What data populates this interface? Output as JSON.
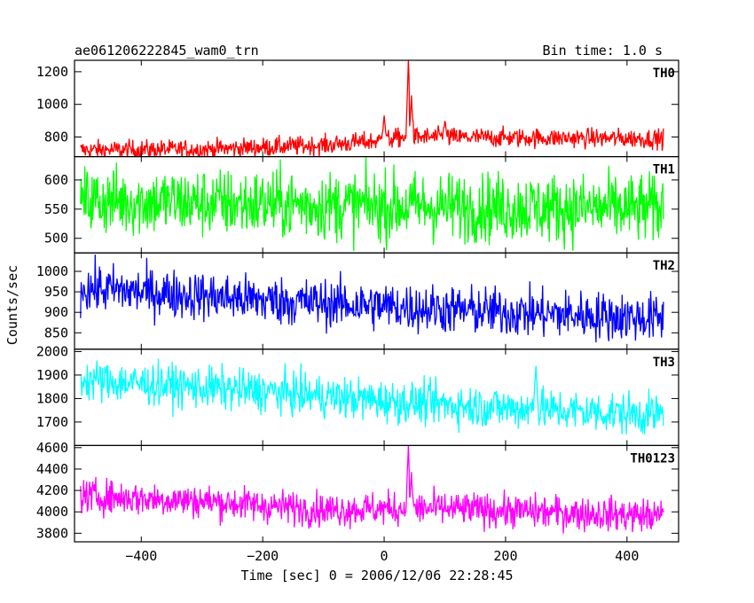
{
  "header": {
    "title": "ae061206222845_wam0_trn",
    "bin_time": "Bin time: 1.0 s"
  },
  "chart_data": {
    "type": "line",
    "xlabel": "Time [sec] 0 = 2006/12/06 22:28:45",
    "ylabel": "Counts/sec",
    "xlim": [
      -510,
      485
    ],
    "x_ticks": [
      -400,
      -200,
      0,
      200,
      400
    ],
    "x_tick_labels": [
      "−400",
      "−200",
      "0",
      "200",
      "400"
    ],
    "x_range": [
      -500,
      460
    ],
    "panels": [
      {
        "label": "TH0",
        "color": "#ff0000",
        "ylim": [
          680,
          1270
        ],
        "yticks": [
          800,
          1000,
          1200
        ],
        "ytick_labels": [
          "800",
          "1000",
          "1200"
        ],
        "trend": [
          [
            -500,
            720
          ],
          [
            -300,
            725
          ],
          [
            -100,
            750
          ],
          [
            0,
            780
          ],
          [
            30,
            800
          ],
          [
            460,
            790
          ]
        ],
        "noise": 30,
        "spikes": [
          [
            0,
            940
          ],
          [
            40,
            1270
          ],
          [
            45,
            1050
          ],
          [
            100,
            900
          ]
        ]
      },
      {
        "label": "TH1",
        "color": "#00ff00",
        "ylim": [
          475,
          640
        ],
        "yticks": [
          500,
          550,
          600
        ],
        "ytick_labels": [
          "500",
          "550",
          "600"
        ],
        "trend": [
          [
            -500,
            565
          ],
          [
            0,
            555
          ],
          [
            460,
            550
          ]
        ],
        "noise": 30,
        "spikes": []
      },
      {
        "label": "TH2",
        "color": "#0000ff",
        "ylim": [
          810,
          1045
        ],
        "yticks": [
          850,
          900,
          950,
          1000
        ],
        "ytick_labels": [
          "850",
          "900",
          "950",
          "1000"
        ],
        "trend": [
          [
            -500,
            960
          ],
          [
            -200,
            930
          ],
          [
            0,
            915
          ],
          [
            200,
            900
          ],
          [
            460,
            885
          ]
        ],
        "noise": 30,
        "spikes": []
      },
      {
        "label": "TH3",
        "color": "#00ffff",
        "ylim": [
          1600,
          2010
        ],
        "yticks": [
          1700,
          1800,
          1900,
          2000
        ],
        "ytick_labels": [
          "1700",
          "1800",
          "1900",
          "2000"
        ],
        "trend": [
          [
            -500,
            1880
          ],
          [
            -200,
            1830
          ],
          [
            0,
            1790
          ],
          [
            200,
            1760
          ],
          [
            460,
            1730
          ]
        ],
        "noise": 45,
        "spikes": [
          [
            250,
            1950
          ]
        ]
      },
      {
        "label": "TH0123",
        "color": "#ff00ff",
        "ylim": [
          3720,
          4620
        ],
        "yticks": [
          3800,
          4000,
          4200,
          4400,
          4600
        ],
        "ytick_labels": [
          "3800",
          "4000",
          "4200",
          "4400",
          "4600"
        ],
        "trend": [
          [
            -500,
            4150
          ],
          [
            -300,
            4100
          ],
          [
            -100,
            4020
          ],
          [
            0,
            4030
          ],
          [
            100,
            4030
          ],
          [
            460,
            3960
          ]
        ],
        "noise": 80,
        "spikes": [
          [
            40,
            4600
          ],
          [
            45,
            4350
          ]
        ]
      }
    ]
  }
}
